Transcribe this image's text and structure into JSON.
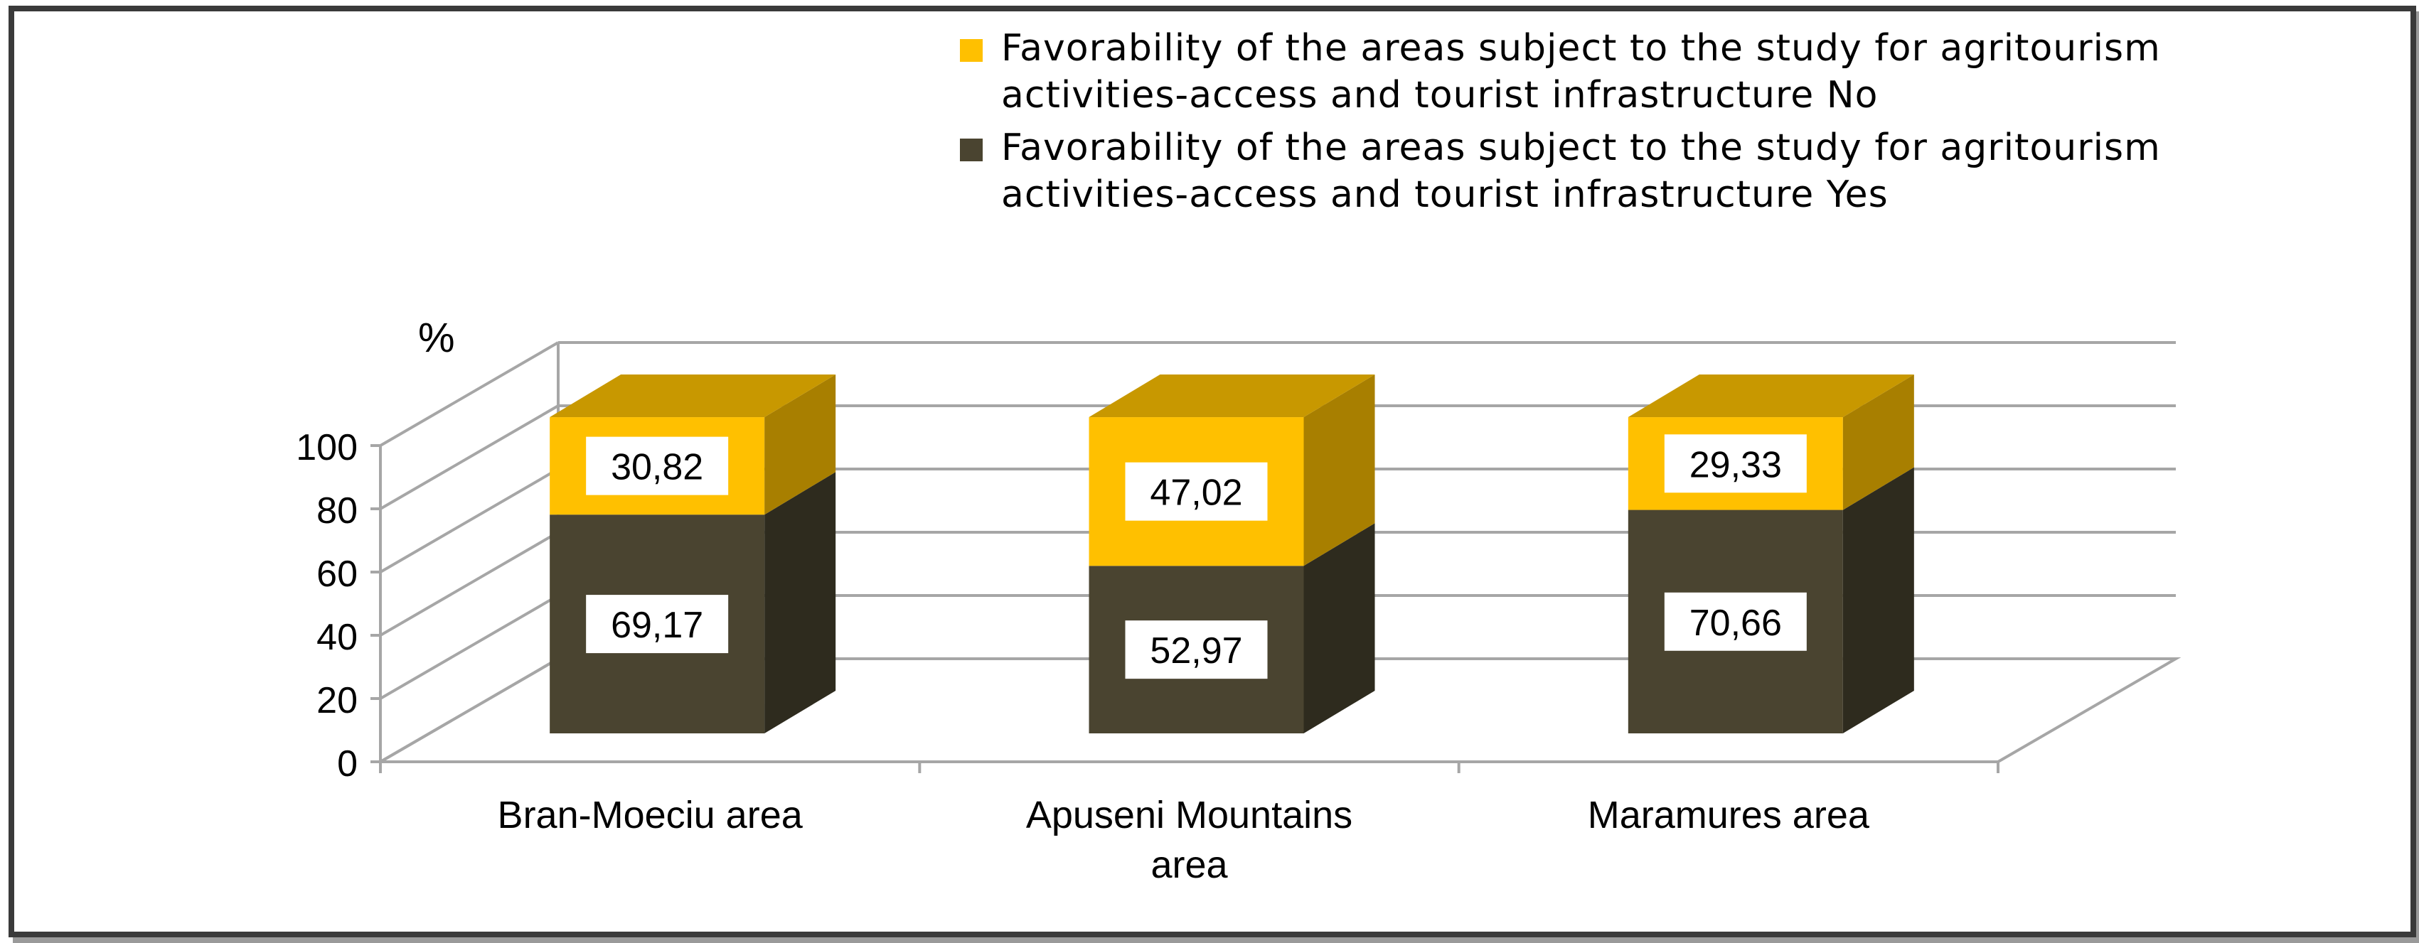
{
  "chart_data": {
    "type": "bar",
    "stacked": true,
    "three_d": true,
    "categories": [
      [
        "Bran-Moeciu area"
      ],
      [
        "Apuseni Mountains",
        "area"
      ],
      [
        "Maramures area"
      ]
    ],
    "series": [
      {
        "name": "Favorability of the areas subject to the study for agritourism activities-access and tourist infrastructure  Yes",
        "legend_lines": [
          "Favorability of the areas subject to the study for agritourism",
          "activities-access and tourist infrastructure  Yes"
        ],
        "values": [
          69.17,
          52.97,
          70.66
        ],
        "labels": [
          "69,17",
          "52,97",
          "70,66"
        ],
        "color": "#4a4430",
        "side_color": "#2e2b1e",
        "top_color": "#5b5440"
      },
      {
        "name": "Favorability of the areas subject to the study for agritourism activities-access and tourist infrastructure  No",
        "legend_lines": [
          "Favorability of the areas subject to the study for agritourism",
          "activities-access and tourist infrastructure  No"
        ],
        "values": [
          30.82,
          47.02,
          29.33
        ],
        "labels": [
          "30,82",
          "47,02",
          "29,33"
        ],
        "color": "#ffc000",
        "side_color": "#a87f00",
        "top_color": "#c89800"
      }
    ],
    "ylabel": "%",
    "ylim": [
      0,
      100
    ],
    "yticks": [
      0,
      20,
      40,
      60,
      80,
      100
    ],
    "grid": true,
    "legend_position": "top-right",
    "legend_order": [
      1,
      0
    ],
    "colors": {
      "frame": "#3a3a3a",
      "grid": "#a6a6a6",
      "text": "#000000"
    }
  }
}
